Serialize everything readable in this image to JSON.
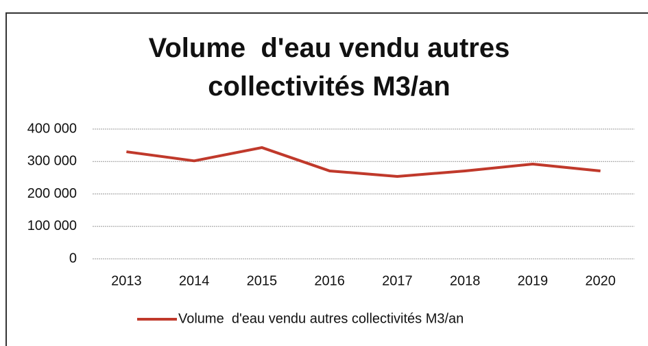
{
  "chart_data": {
    "type": "line",
    "title": "Volume  d'eau vendu autres collectivités M3/an",
    "categories": [
      "2013",
      "2014",
      "2015",
      "2016",
      "2017",
      "2018",
      "2019",
      "2020"
    ],
    "series": [
      {
        "name": "Volume  d'eau vendu autres collectivités M3/an",
        "color": "#c0392b",
        "values": [
          330000,
          302000,
          343000,
          271000,
          254000,
          271000,
          292000,
          271000
        ]
      }
    ],
    "ylim": [
      0,
      400000
    ],
    "yticks": [
      0,
      {
        "value": 100000,
        "label": "100 000"
      },
      {
        "value": 200000,
        "label": "200 000"
      },
      {
        "value": 300000,
        "label": "300 000"
      },
      {
        "value": 400000,
        "label": "400 000"
      }
    ],
    "grid": true,
    "legend": "bottom"
  }
}
